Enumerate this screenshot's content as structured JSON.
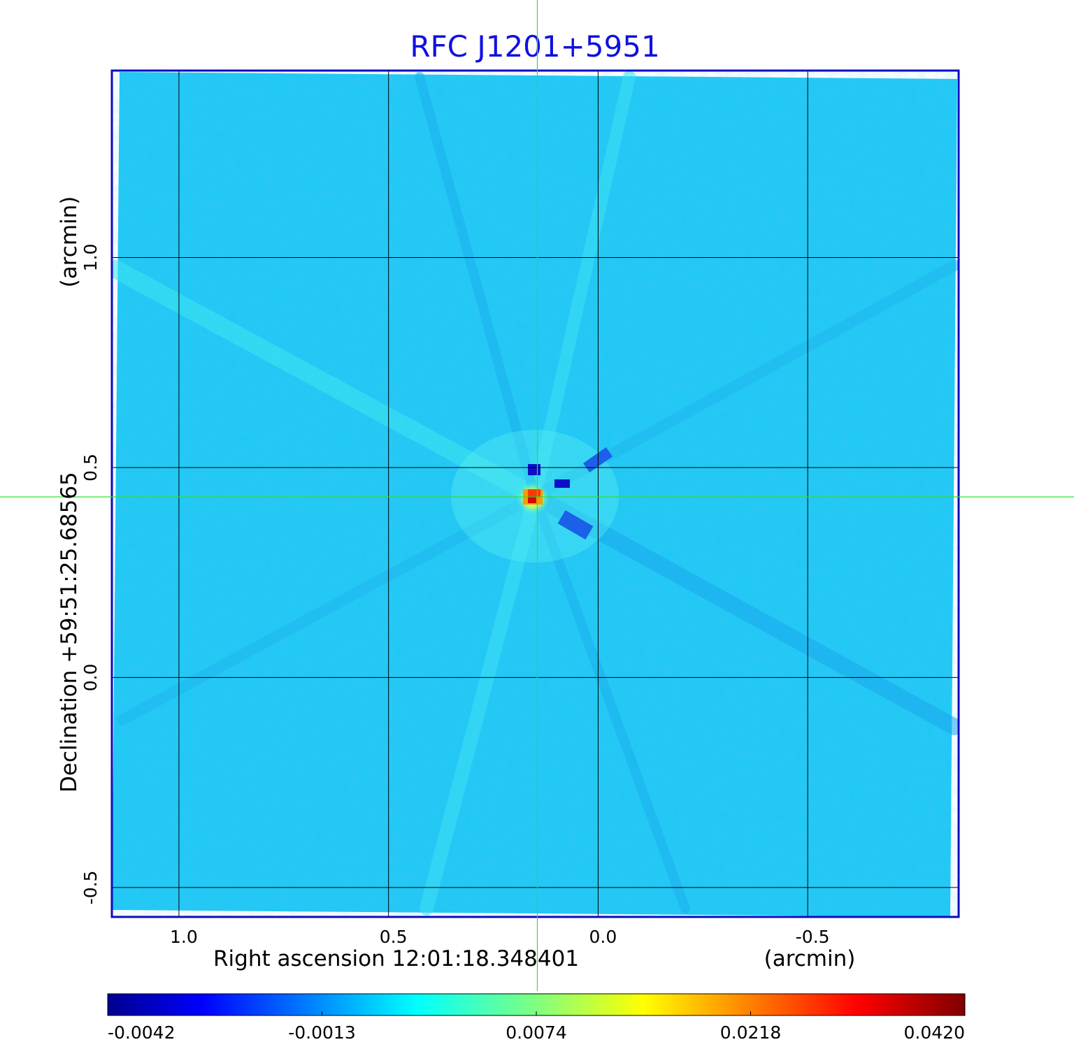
{
  "chart_data": {
    "type": "heatmap",
    "title": "RFC J1201+5951",
    "xlabel": "Right ascension  12:01:18.348401",
    "xunit": "(arcmin)",
    "ylabel": "Declination  +59:51:25.68565",
    "yunit": "(arcmin)",
    "x_ticks": [
      "1.0",
      "0.5",
      "0.0",
      "-0.5"
    ],
    "x_tick_values": [
      1.0,
      0.5,
      0.0,
      -0.5
    ],
    "y_ticks": [
      "1.0",
      "0.5",
      "0.0",
      "-0.5"
    ],
    "y_tick_values": [
      1.0,
      0.5,
      0.0,
      -0.5
    ],
    "xlim": [
      1.16,
      -0.86
    ],
    "ylim": [
      -0.57,
      1.445
    ],
    "grid": true,
    "crosshair": {
      "x": 0.145,
      "y": 0.43
    },
    "colorbar": {
      "colormap": "jet",
      "tick_labels": [
        "-0.0042",
        "-0.0013",
        "0.0074",
        "0.0218",
        "0.0420"
      ],
      "range": [
        -0.0042,
        0.042
      ]
    },
    "source": {
      "x": 0.155,
      "y": 0.43,
      "peak": 0.042
    }
  },
  "colors": {
    "frame": "#0b0bc0",
    "title": "#1010e0",
    "crosshair": "#30e030",
    "background_map": "#1fc8f4"
  }
}
